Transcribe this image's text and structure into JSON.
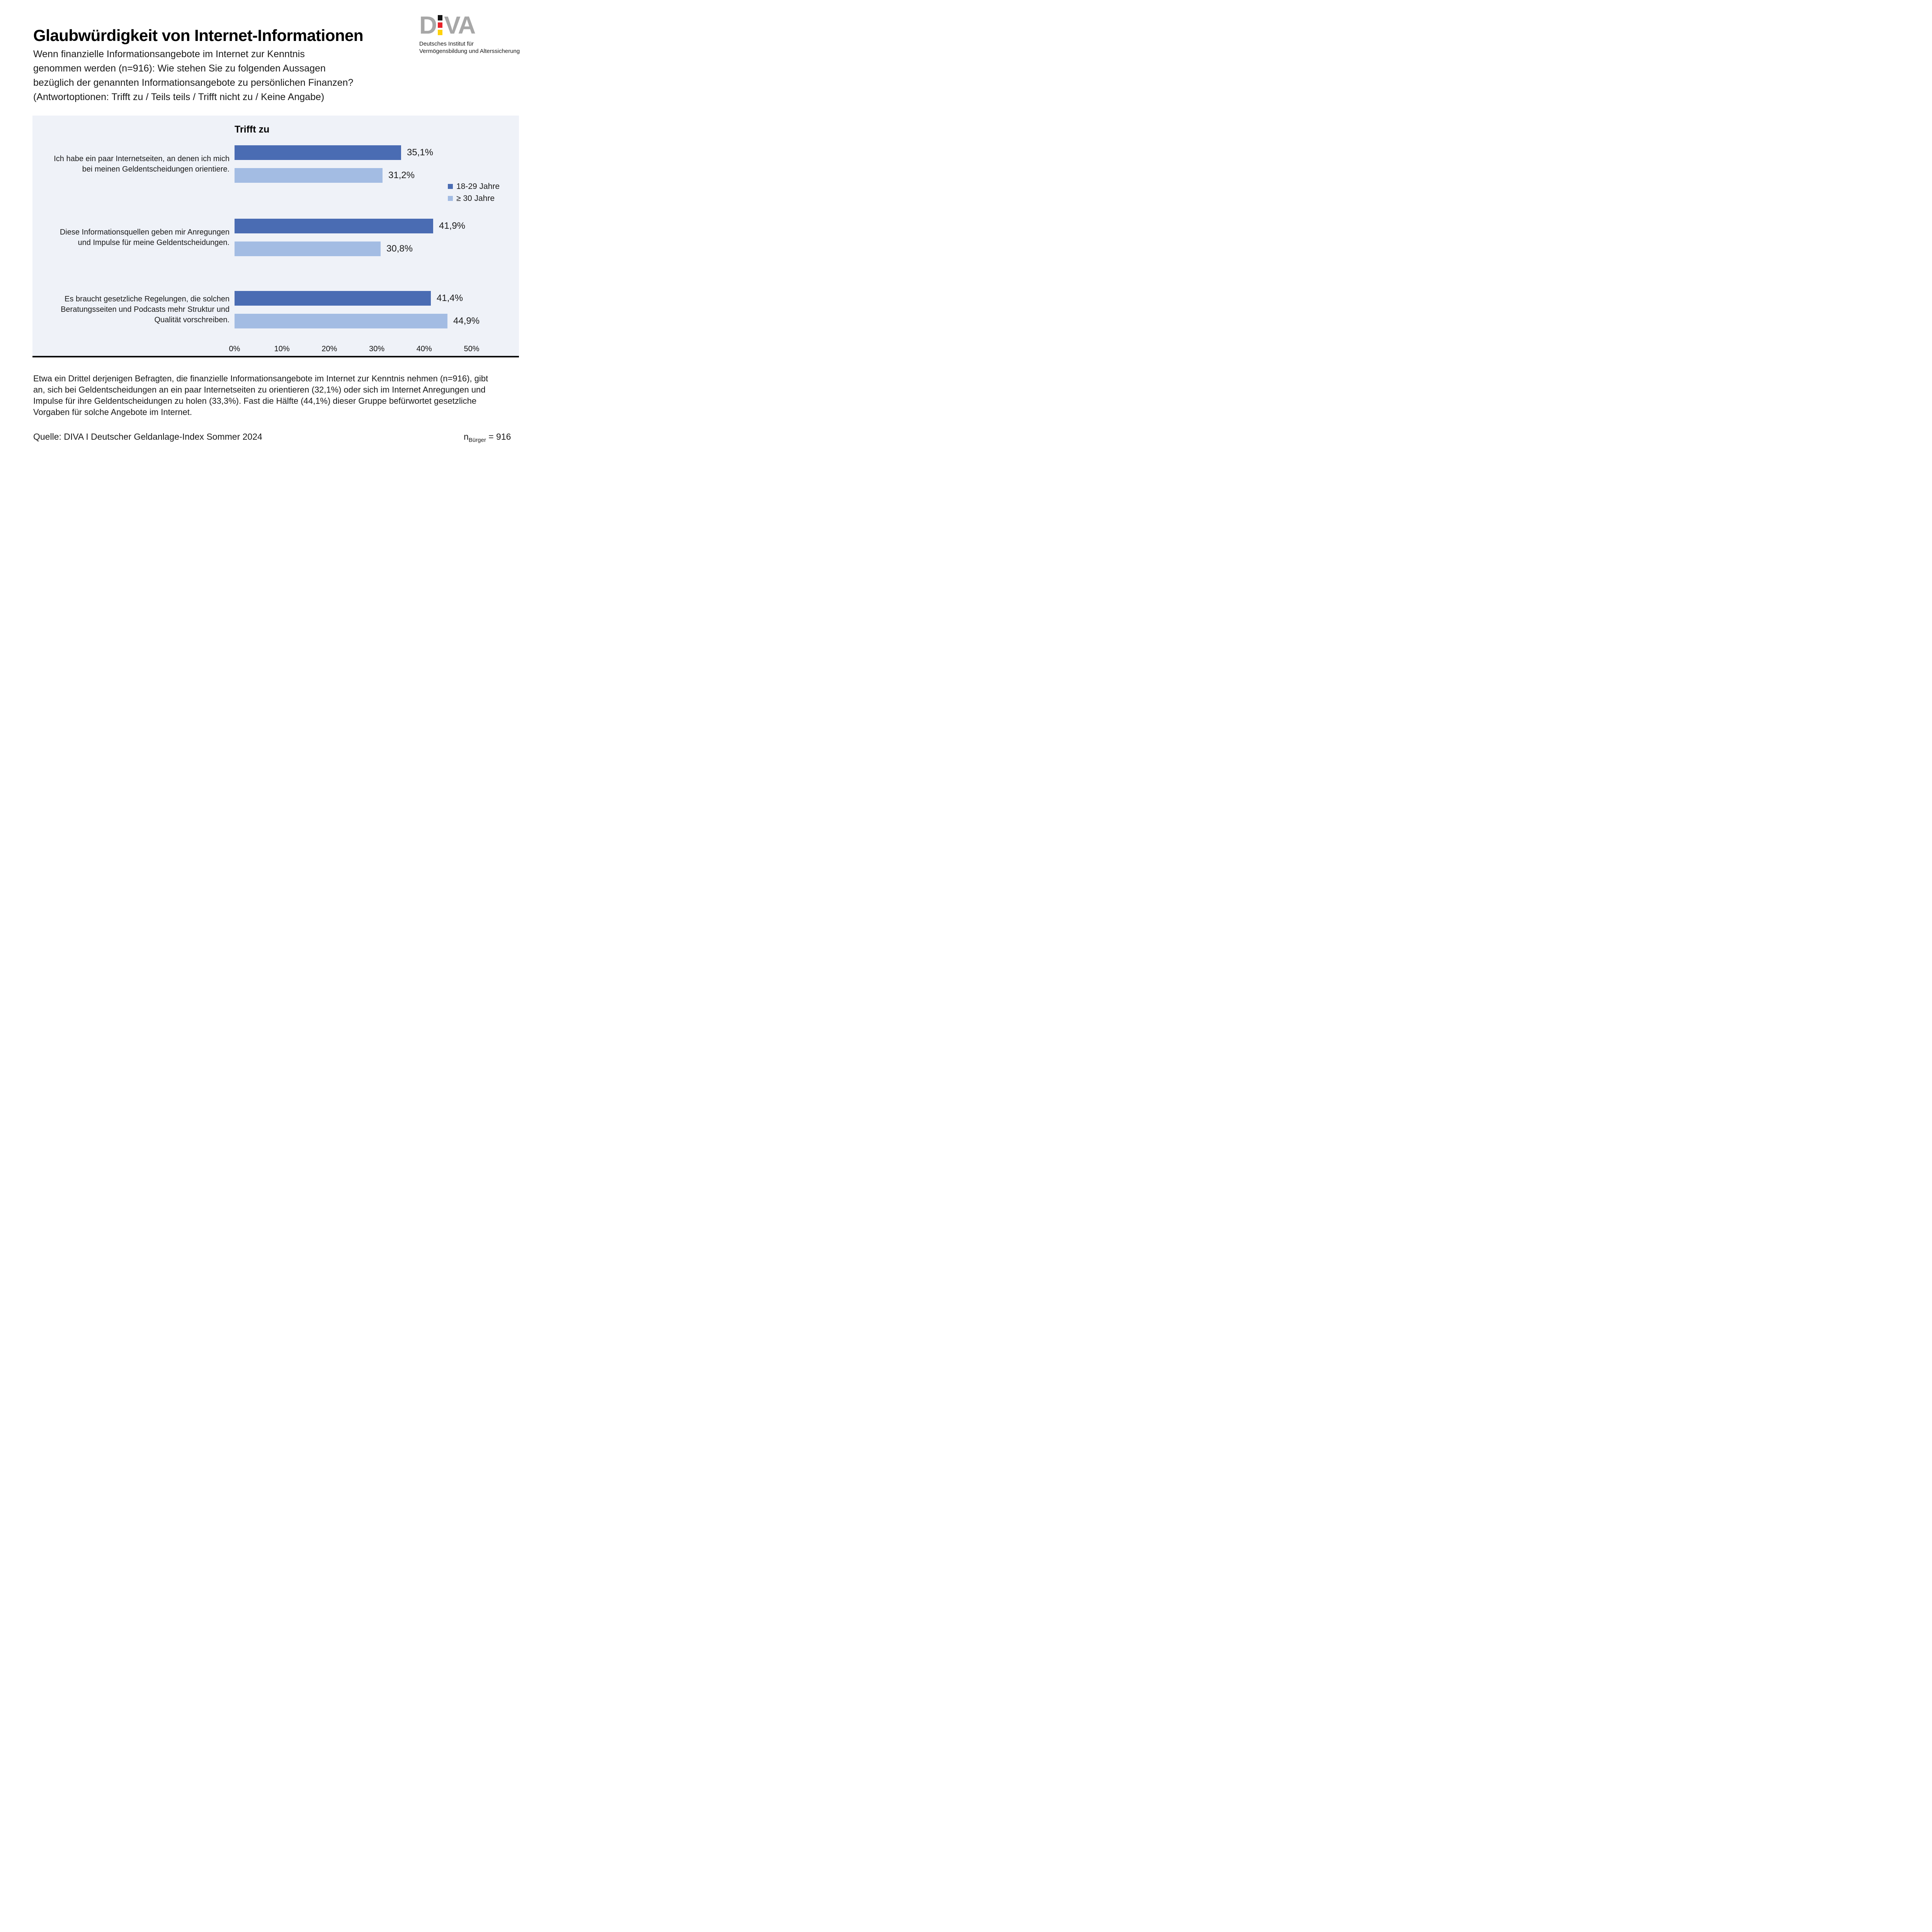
{
  "header": {
    "title": "Glaubwürdigkeit von Internet-Informationen",
    "subtitle_lines": [
      "Wenn finanzielle Informationsangebote im Internet zur Kenntnis",
      "genommen werden (n=916): Wie stehen Sie zu folgenden Aussagen",
      "bezüglich der genannten Informationsangebote zu persönlichen Finanzen?",
      "(Antwortoptionen: Trifft zu / Teils teils / Trifft nicht zu / Keine Angabe)"
    ]
  },
  "logo": {
    "letter_d": "D",
    "letters_va": "VA",
    "subtitle_line1": "Deutsches Institut für",
    "subtitle_line2": "Vermögensbildung und Alterssicherung",
    "colors": {
      "gray": "#A7A7A7",
      "flag_black": "#141414",
      "flag_red": "#E8222A",
      "flag_yellow": "#FFD20B"
    }
  },
  "chart_data": {
    "type": "bar",
    "orientation": "horizontal",
    "title": "Trifft zu",
    "categories": [
      [
        "Ich habe ein paar Internetseiten, an denen ich mich",
        "bei meinen Geldentscheidungen orientiere."
      ],
      [
        "Diese Informationsquellen geben mir Anregungen",
        "und Impulse für meine Geldentscheidungen."
      ],
      [
        "Es braucht gesetzliche Regelungen, die solchen",
        "Beratungsseiten und Podcasts mehr Struktur und",
        "Qualität vorschreiben."
      ]
    ],
    "series": [
      {
        "name": "18-29 Jahre",
        "color": "#4A6CB3",
        "values": [
          35.1,
          41.9,
          41.4
        ],
        "labels": [
          "35,1%",
          "41,9%",
          "41,4%"
        ]
      },
      {
        "name": "≥ 30 Jahre",
        "color": "#A3BCE3",
        "values": [
          31.2,
          30.8,
          44.9
        ],
        "labels": [
          "31,2%",
          "30,8%",
          "44,9%"
        ]
      }
    ],
    "x_ticks": [
      "0%",
      "10%",
      "20%",
      "30%",
      "40%",
      "50%"
    ],
    "xlim": [
      0,
      50
    ],
    "grid": false,
    "legend_position": "right",
    "plot_background": "#EFF2F8"
  },
  "footer": {
    "paragraph_lines": [
      "Etwa ein Drittel derjenigen Befragten, die finanzielle Informationsangebote im Internet zur Kenntnis nehmen (n=916), gibt",
      "an, sich bei Geldentscheidungen an ein paar Internetseiten zu orientieren (32,1%) oder sich im Internet Anregungen und",
      "Impulse für ihre Geldentscheidungen zu holen (33,3%). Fast die Hälfte (44,1%) dieser Gruppe befürwortet gesetzliche",
      "Vorgaben für solche Angebote im Internet."
    ],
    "source": "Quelle: DIVA I Deutscher Geldanlage-Index Sommer 2024",
    "sample": {
      "n": "n",
      "sub": "Bürger",
      "value": "= 916"
    }
  }
}
